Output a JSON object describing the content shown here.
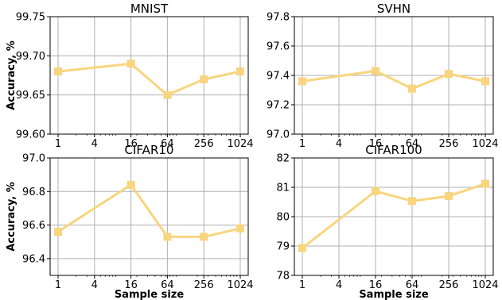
{
  "colors": {
    "series": "#f8d57e",
    "grid": "#b0b0b0",
    "axis": "#000000"
  },
  "chart_data": [
    {
      "type": "line",
      "title": "MNIST",
      "xlabel": "",
      "ylabel": "Accuracy, %",
      "x_scale": "log2",
      "categories": [
        "1",
        "4",
        "16",
        "64",
        "256",
        "1024"
      ],
      "x": [
        1,
        16,
        64,
        256,
        1024
      ],
      "values": [
        99.68,
        99.69,
        99.65,
        99.67,
        99.68
      ],
      "ylim": [
        99.6,
        99.75
      ],
      "yticks": [
        "99.60",
        "99.65",
        "99.70",
        "99.75"
      ],
      "grid": true
    },
    {
      "type": "line",
      "title": "SVHN",
      "xlabel": "",
      "ylabel": "",
      "x_scale": "log2",
      "categories": [
        "1",
        "4",
        "16",
        "64",
        "256",
        "1024"
      ],
      "x": [
        1,
        16,
        64,
        256,
        1024
      ],
      "values": [
        97.36,
        97.43,
        97.31,
        97.41,
        97.36
      ],
      "ylim": [
        97.0,
        97.8
      ],
      "yticks": [
        "97.0",
        "97.2",
        "97.4",
        "97.6",
        "97.8"
      ],
      "grid": true
    },
    {
      "type": "line",
      "title": "CIFAR10",
      "xlabel": "Sample size",
      "ylabel": "Accuracy, %",
      "x_scale": "log2",
      "categories": [
        "1",
        "4",
        "16",
        "64",
        "256",
        "1024"
      ],
      "x": [
        1,
        16,
        64,
        256,
        1024
      ],
      "values": [
        96.56,
        96.84,
        96.53,
        96.53,
        96.58
      ],
      "ylim": [
        96.3,
        97.0
      ],
      "yticks": [
        "96.4",
        "96.6",
        "96.8",
        "97.0"
      ],
      "grid": true
    },
    {
      "type": "line",
      "title": "CIFAR100",
      "xlabel": "Sample size",
      "ylabel": "",
      "x_scale": "log2",
      "categories": [
        "1",
        "4",
        "16",
        "64",
        "256",
        "1024"
      ],
      "x": [
        1,
        16,
        64,
        256,
        1024
      ],
      "values": [
        78.93,
        80.87,
        80.53,
        80.7,
        81.12
      ],
      "ylim": [
        78,
        82
      ],
      "yticks": [
        "78",
        "79",
        "80",
        "81",
        "82"
      ],
      "grid": true
    }
  ]
}
